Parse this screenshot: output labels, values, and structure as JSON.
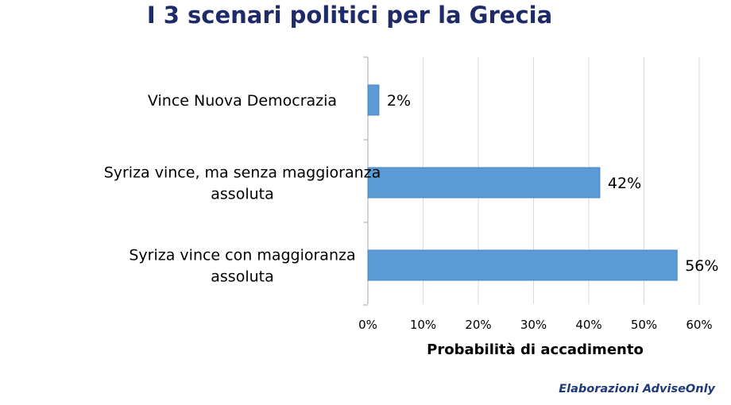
{
  "title": "I 3 scenari politici per la Grecia",
  "source": "Elaborazioni AdviseOnly",
  "chart_data": {
    "type": "bar",
    "orientation": "horizontal",
    "title": "I 3 scenari politici per la Grecia",
    "xlabel": "Probabilità di accadimento",
    "ylabel": "",
    "categories": [
      [
        "Vince Nuova Democrazia"
      ],
      [
        "Syriza vince, ma senza maggioranza",
        "assoluta"
      ],
      [
        "Syriza vince con maggioranza",
        "assoluta"
      ]
    ],
    "values": [
      2,
      42,
      56
    ],
    "data_labels": [
      "2%",
      "42%",
      "56%"
    ],
    "x_ticks": [
      "0%",
      "10%",
      "20%",
      "30%",
      "40%",
      "50%",
      "60%"
    ],
    "xlim": [
      0,
      60
    ],
    "grid": "vertical",
    "legend": "none",
    "bar_color": "#5b9bd5",
    "grid_color": "#d9d9d9"
  }
}
